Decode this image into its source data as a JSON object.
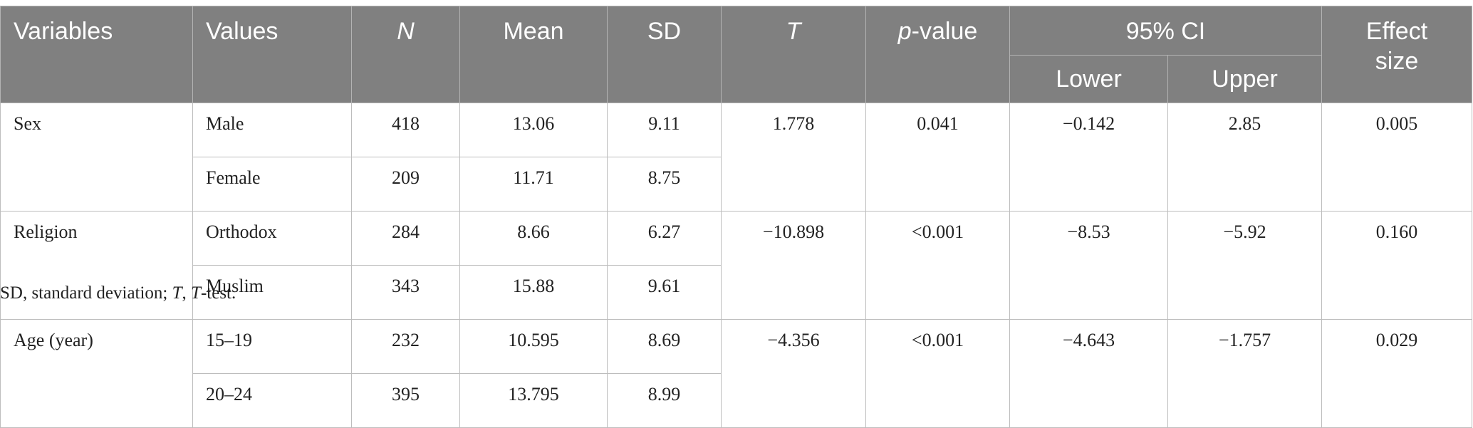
{
  "header": {
    "variables": "Variables",
    "values": "Values",
    "n": "N",
    "mean": "Mean",
    "sd": "SD",
    "t": "T",
    "p_prefix": "p",
    "p_suffix": "-value",
    "ci": "95% CI",
    "lower": "Lower",
    "upper": "Upper",
    "effect_line1": "Effect",
    "effect_line2": "size"
  },
  "groups": [
    {
      "variable": "Sex",
      "t": "1.778",
      "p": "0.041",
      "lower": "−0.142",
      "upper": "2.85",
      "effect": "0.005",
      "rows": [
        {
          "value": "Male",
          "n": "418",
          "mean": "13.06",
          "sd": "9.11"
        },
        {
          "value": "Female",
          "n": "209",
          "mean": "11.71",
          "sd": "8.75"
        }
      ]
    },
    {
      "variable": "Religion",
      "t": "−10.898",
      "p": "<0.001",
      "lower": "−8.53",
      "upper": "−5.92",
      "effect": "0.160",
      "rows": [
        {
          "value": "Orthodox",
          "n": "284",
          "mean": "8.66",
          "sd": "6.27"
        },
        {
          "value": "Muslim",
          "n": "343",
          "mean": "15.88",
          "sd": "9.61"
        }
      ]
    },
    {
      "variable": "Age (year)",
      "t": "−4.356",
      "p": "<0.001",
      "lower": "−4.643",
      "upper": "−1.757",
      "effect": "0.029",
      "rows": [
        {
          "value": "15–19",
          "n": "232",
          "mean": "10.595",
          "sd": "8.69"
        },
        {
          "value": "20–24",
          "n": "395",
          "mean": "13.795",
          "sd": "8.99"
        }
      ]
    }
  ],
  "footnote": {
    "part1": "SD, standard deviation; ",
    "t_italic": "T",
    "part2": ", ",
    "t_italic2": "T",
    "part3": "-test."
  }
}
